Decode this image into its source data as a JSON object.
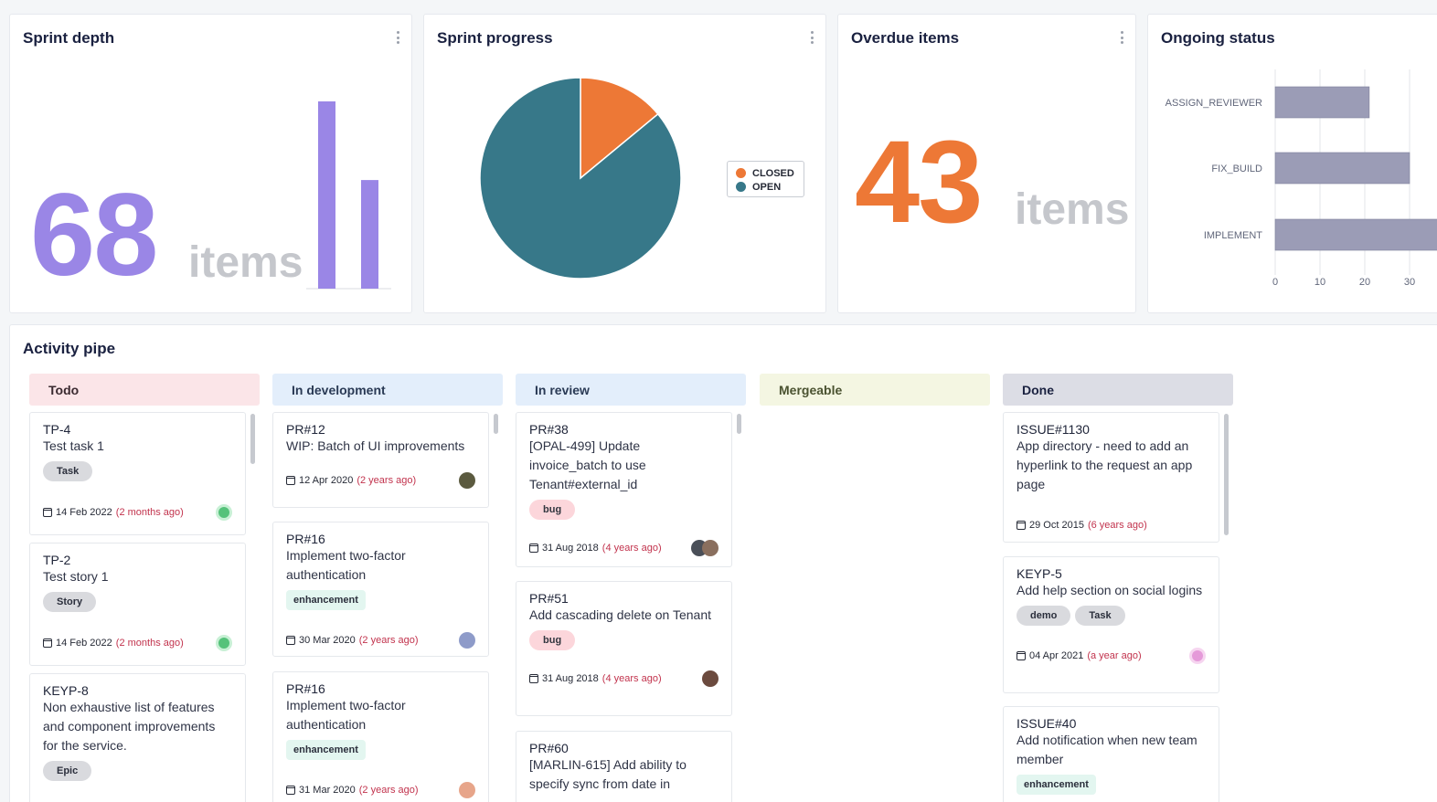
{
  "widgets": {
    "sprint_depth": {
      "title": "Sprint depth",
      "value": "68",
      "unit": "items",
      "bars": [
        100,
        58
      ]
    },
    "sprint_progress": {
      "title": "Sprint progress",
      "legend": [
        {
          "label": "CLOSED",
          "color": "#ed7836"
        },
        {
          "label": "OPEN",
          "color": "#377889"
        }
      ],
      "slices": [
        {
          "label": "CLOSED",
          "value": 14
        },
        {
          "label": "OPEN",
          "value": 86
        }
      ]
    },
    "overdue": {
      "title": "Overdue items",
      "value": "43",
      "unit": "items"
    },
    "ongoing": {
      "title": "Ongoing status",
      "categories": [
        "ASSIGN_REVIEWER",
        "FIX_BUILD",
        "IMPLEMENT"
      ],
      "values": [
        21,
        30,
        38
      ],
      "ticks": [
        "0",
        "10",
        "20",
        "30"
      ],
      "xlim": [
        0,
        40
      ]
    }
  },
  "pipe": {
    "title": "Activity pipe",
    "columns": [
      {
        "label": "Todo",
        "color": "#fbe5e8",
        "text_color": "#3a2a30"
      },
      {
        "label": "In development",
        "color": "#e3eefb",
        "text_color": "#2a3a55"
      },
      {
        "label": "In review",
        "color": "#e3eefb",
        "text_color": "#2a3a55"
      },
      {
        "label": "Mergeable",
        "color": "#f4f6e2",
        "text_color": "#4a5230"
      },
      {
        "label": "Done",
        "color": "#dcdde5",
        "text_color": "#1a2140"
      }
    ],
    "cards": {
      "todo": [
        {
          "id": "TP-4",
          "title": "Test task 1",
          "tags": [
            "Task"
          ],
          "date": "14 Feb 2022",
          "ago": "(2 months ago)"
        },
        {
          "id": "TP-2",
          "title": "Test story 1",
          "tags": [
            "Story"
          ],
          "date": "14 Feb 2022",
          "ago": "(2 months ago)"
        },
        {
          "id": "KEYP-8",
          "title": "Non exhaustive list of features and component improvements for the service.",
          "tags": [
            "Epic"
          ],
          "date": "",
          "ago": ""
        }
      ],
      "dev": [
        {
          "id": "PR#12",
          "title": "WIP: Batch of UI improvements",
          "tags": [],
          "date": "12 Apr 2020",
          "ago": "(2 years ago)"
        },
        {
          "id": "PR#16",
          "title": "Implement two-factor authentication",
          "tags": [
            "enhancement"
          ],
          "date": "30 Mar 2020",
          "ago": "(2 years ago)"
        },
        {
          "id": "PR#16",
          "title": "Implement two-factor authentication",
          "tags": [
            "enhancement"
          ],
          "date": "31 Mar 2020",
          "ago": "(2 years ago)"
        }
      ],
      "review": [
        {
          "id": "PR#38",
          "title": "[OPAL-499] Update invoice_batch to use Tenant#external_id",
          "tags": [
            "bug"
          ],
          "date": "31 Aug 2018",
          "ago": "(4 years ago)"
        },
        {
          "id": "PR#51",
          "title": "Add cascading delete on Tenant",
          "tags": [
            "bug"
          ],
          "date": "31 Aug 2018",
          "ago": "(4 years ago)"
        },
        {
          "id": "PR#60",
          "title": "[MARLIN-615] Add ability to specify sync from date in",
          "tags": [],
          "date": "",
          "ago": ""
        }
      ],
      "done": [
        {
          "id": "ISSUE#1130",
          "title": "App directory - need to add an hyperlink to the request an app page",
          "tags": [],
          "date": "29 Oct 2015",
          "ago": "(6 years ago)"
        },
        {
          "id": "KEYP-5",
          "title": "Add help section on social logins",
          "tags": [
            "demo",
            "Task"
          ],
          "date": "04 Apr 2021",
          "ago": "(a year ago)"
        },
        {
          "id": "ISSUE#40",
          "title": "Add notification when new team member",
          "tags": [
            "enhancement"
          ],
          "date": "",
          "ago": ""
        }
      ]
    }
  }
}
